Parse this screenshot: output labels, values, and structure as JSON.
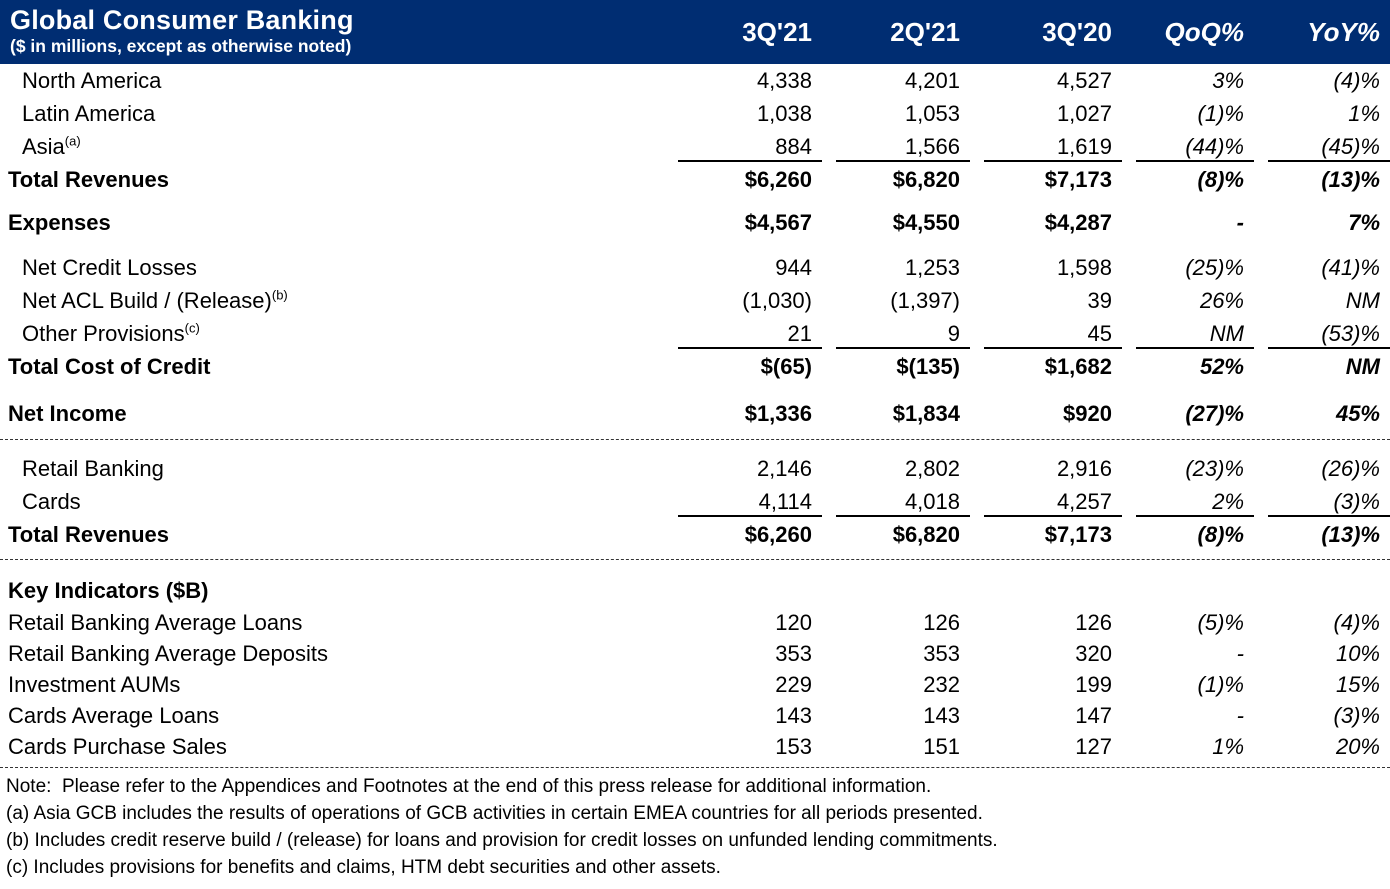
{
  "header": {
    "title": "Global Consumer Banking",
    "subtitle": "($ in millions, except as otherwise noted)",
    "columns": [
      "3Q'21",
      "2Q'21",
      "3Q'20",
      "QoQ%",
      "YoY%"
    ],
    "background_color": "#002D72",
    "text_color": "#FFFFFF"
  },
  "table": {
    "rows": [
      {
        "kind": "data",
        "label": "North America",
        "indent": true,
        "values": [
          "4,338",
          "4,201",
          "4,527",
          "3%",
          "(4)%"
        ]
      },
      {
        "kind": "data",
        "label": "Latin America",
        "indent": true,
        "values": [
          "1,038",
          "1,053",
          "1,027",
          "(1)%",
          "1%"
        ]
      },
      {
        "kind": "data",
        "label": "Asia",
        "sup": "(a)",
        "indent": true,
        "underline": true,
        "values": [
          "884",
          "1,566",
          "1,619",
          "(44)%",
          "(45)%"
        ]
      },
      {
        "kind": "data",
        "label": "Total Revenues",
        "bold": true,
        "values": [
          "$6,260",
          "$6,820",
          "$7,173",
          "(8)%",
          "(13)%"
        ]
      },
      {
        "kind": "spacer",
        "h": 10
      },
      {
        "kind": "data",
        "label": "Expenses",
        "bold": true,
        "values": [
          "$4,567",
          "$4,550",
          "$4,287",
          "-",
          "7%"
        ]
      },
      {
        "kind": "spacer",
        "h": 12
      },
      {
        "kind": "data",
        "label": "Net Credit Losses",
        "indent": true,
        "values": [
          "944",
          "1,253",
          "1,598",
          "(25)%",
          "(41)%"
        ]
      },
      {
        "kind": "data",
        "label": "Net ACL Build / (Release)",
        "sup": "(b)",
        "indent": true,
        "values": [
          "(1,030)",
          "(1,397)",
          "39",
          "26%",
          "NM"
        ]
      },
      {
        "kind": "data",
        "label": "Other Provisions",
        "sup": "(c)",
        "indent": true,
        "underline": true,
        "values": [
          "21",
          "9",
          "45",
          "NM",
          "(53)%"
        ]
      },
      {
        "kind": "data",
        "label": "Total Cost of Credit",
        "bold": true,
        "values": [
          "$(65)",
          "$(135)",
          "$1,682",
          "52%",
          "NM"
        ]
      },
      {
        "kind": "spacer",
        "h": 14
      },
      {
        "kind": "data",
        "label": "Net Income",
        "bold": true,
        "values": [
          "$1,336",
          "$1,834",
          "$920",
          "(27)%",
          "45%"
        ]
      },
      {
        "kind": "spacer",
        "h": 9
      },
      {
        "kind": "divider"
      },
      {
        "kind": "spacer",
        "h": 12
      },
      {
        "kind": "data",
        "label": "Retail Banking",
        "indent": true,
        "values": [
          "2,146",
          "2,802",
          "2,916",
          "(23)%",
          "(26)%"
        ]
      },
      {
        "kind": "data",
        "label": "Cards",
        "indent": true,
        "underline": true,
        "values": [
          "4,114",
          "4,018",
          "4,257",
          "2%",
          "(3)%"
        ]
      },
      {
        "kind": "data",
        "label": "Total Revenues",
        "bold": true,
        "values": [
          "$6,260",
          "$6,820",
          "$7,173",
          "(8)%",
          "(13)%"
        ]
      },
      {
        "kind": "spacer",
        "h": 8
      },
      {
        "kind": "divider"
      },
      {
        "kind": "spacer",
        "h": 14
      },
      {
        "kind": "data",
        "label": "Key Indicators ($B)",
        "bold": true,
        "values": [
          "",
          "",
          "",
          "",
          ""
        ]
      },
      {
        "kind": "data",
        "label": "Retail Banking Average Loans",
        "compact": true,
        "values": [
          "120",
          "126",
          "126",
          "(5)%",
          "(4)%"
        ]
      },
      {
        "kind": "data",
        "label": "Retail Banking Average Deposits",
        "compact": true,
        "values": [
          "353",
          "353",
          "320",
          "-",
          "10%"
        ]
      },
      {
        "kind": "data",
        "label": "Investment AUMs",
        "compact": true,
        "values": [
          "229",
          "232",
          "199",
          "(1)%",
          "15%"
        ]
      },
      {
        "kind": "data",
        "label": "Cards Average Loans",
        "compact": true,
        "values": [
          "143",
          "143",
          "147",
          "-",
          "(3)%"
        ]
      },
      {
        "kind": "data",
        "label": "Cards Purchase Sales",
        "compact": true,
        "values": [
          "153",
          "151",
          "127",
          "1%",
          "20%"
        ]
      },
      {
        "kind": "spacer",
        "h": 5
      },
      {
        "kind": "divider"
      },
      {
        "kind": "spacer",
        "h": 5
      }
    ],
    "footnotes": [
      "Note:  Please refer to the Appendices and Footnotes at the end of this press release for additional information.",
      "(a) Asia GCB includes the results of operations of GCB activities in certain EMEA countries for all periods presented.",
      "(b) Includes credit reserve build / (release) for loans and provision for credit losses on unfunded lending commitments.",
      "(c) Includes provisions for benefits and claims, HTM debt securities and other assets."
    ]
  }
}
